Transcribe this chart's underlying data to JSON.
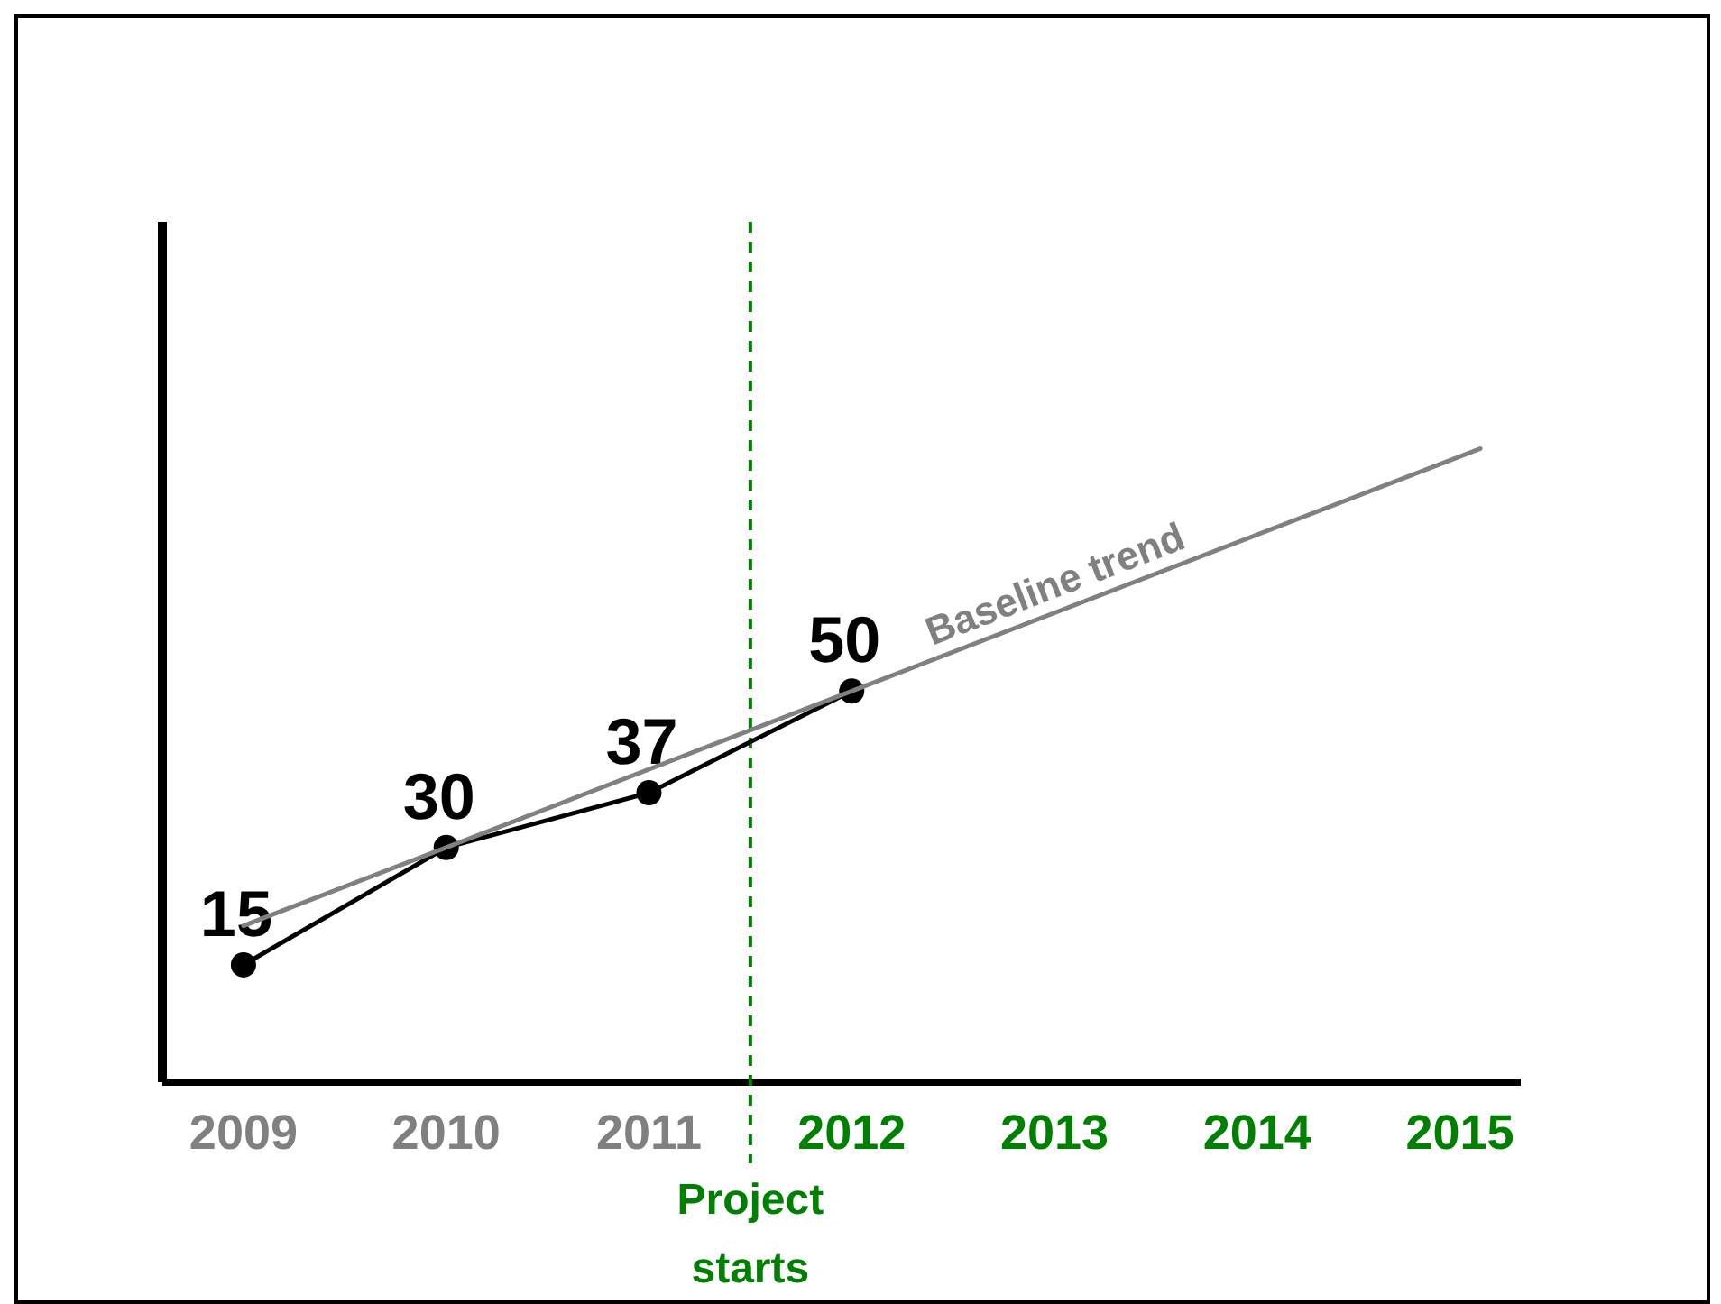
{
  "chart_data": {
    "type": "line",
    "xlim": [
      2008.6,
      2015.3
    ],
    "xticks": [
      2009,
      2010,
      2011,
      2012,
      2013,
      2014,
      2015
    ],
    "ylim": [
      0,
      110
    ],
    "tick_labels": "x",
    "marker": "circle",
    "series": [
      {
        "color": "#000000",
        "x": [
          2009,
          2010,
          2011,
          2012
        ],
        "values": [
          15,
          30,
          37,
          50
        ],
        "value_labels": [
          "15",
          "30",
          "37",
          "50"
        ]
      },
      {
        "name": "Baseline trend",
        "type": "line",
        "marker": "none",
        "color": "#808080",
        "x": [
          2009,
          2015.1
        ],
        "values": [
          20,
          81
        ]
      }
    ],
    "ref_lines": [
      {
        "axis": "x",
        "value": 2011.5,
        "label": "Project starts",
        "color": "#008000",
        "line_style": "dashed"
      }
    ]
  }
}
